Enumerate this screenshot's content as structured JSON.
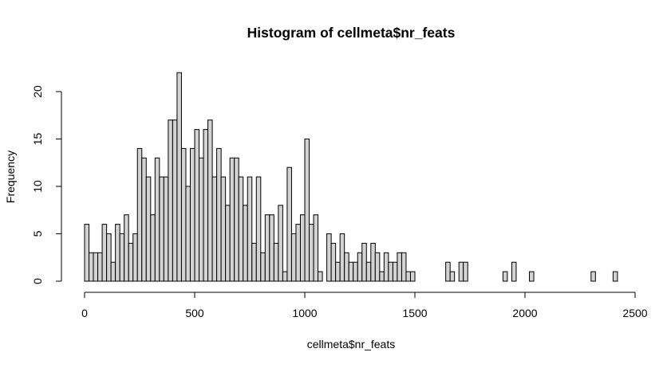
{
  "chart_data": {
    "type": "bar",
    "subtype": "histogram",
    "title": "Histogram of cellmeta$nr_feats",
    "xlabel": "cellmeta$nr_feats",
    "ylabel": "Frequency",
    "bin_width": 20,
    "bin_start": 0,
    "xlim": [
      0,
      2500
    ],
    "ylim": [
      0,
      22
    ],
    "x_ticks": [
      0,
      500,
      1000,
      1500,
      2000,
      2500
    ],
    "y_ticks": [
      0,
      5,
      10,
      15,
      20
    ],
    "grid": false,
    "legend": "none",
    "bar_fill": "#d3d3d3",
    "bar_stroke": "#000000",
    "values": [
      6,
      3,
      3,
      3,
      6,
      5,
      2,
      6,
      5,
      7,
      4,
      5,
      14,
      13,
      11,
      7,
      13,
      11,
      11,
      17,
      17,
      22,
      14,
      10,
      14,
      16,
      13,
      16,
      17,
      11,
      14,
      11,
      8,
      13,
      13,
      11,
      8,
      11,
      4,
      11,
      3,
      7,
      7,
      4,
      8,
      1,
      12,
      5,
      6,
      7,
      15,
      6,
      7,
      1,
      0,
      5,
      4,
      2,
      5,
      3,
      2,
      2,
      3,
      4,
      2,
      4,
      3,
      1,
      3,
      2,
      2,
      3,
      3,
      1,
      1,
      0,
      0,
      0,
      0,
      0,
      0,
      0,
      2,
      1,
      0,
      2,
      2,
      0,
      0,
      0,
      0,
      0,
      0,
      0,
      0,
      1,
      0,
      2,
      0,
      0,
      0,
      1,
      0,
      0,
      0,
      0,
      0,
      0,
      0,
      0,
      0,
      0,
      0,
      0,
      0,
      1,
      0,
      0,
      0,
      0,
      1
    ]
  }
}
